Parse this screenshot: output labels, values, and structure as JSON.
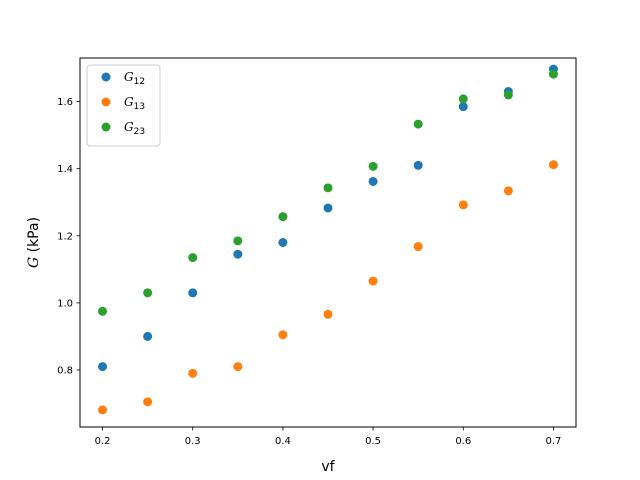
{
  "chart_data": {
    "type": "scatter",
    "xlabel": "vf",
    "ylabel_italic": "G",
    "ylabel_rest": " (kPa)",
    "xlim": [
      0.175,
      0.725
    ],
    "ylim": [
      0.63,
      1.73
    ],
    "xticks": [
      0.2,
      0.3,
      0.4,
      0.5,
      0.6,
      0.7
    ],
    "xtick_labels": [
      "0.2",
      "0.3",
      "0.4",
      "0.5",
      "0.6",
      "0.7"
    ],
    "yticks": [
      0.8,
      1.0,
      1.2,
      1.4,
      1.6
    ],
    "ytick_labels": [
      "0.8",
      "1.0",
      "1.2",
      "1.4",
      "1.6"
    ],
    "grid": false,
    "legend_position": "top-left",
    "x": [
      0.2,
      0.25,
      0.3,
      0.35,
      0.4,
      0.45,
      0.5,
      0.55,
      0.6,
      0.65,
      0.7
    ],
    "series": [
      {
        "name": "G12",
        "name_base": "G",
        "name_sub": "12",
        "color": "#1f77b4",
        "values": [
          0.81,
          0.9,
          1.03,
          1.145,
          1.18,
          1.283,
          1.362,
          1.41,
          1.585,
          1.63,
          1.697
        ]
      },
      {
        "name": "G13",
        "name_base": "G",
        "name_sub": "13",
        "color": "#ff7f0e",
        "values": [
          0.681,
          0.705,
          0.79,
          0.81,
          0.905,
          0.966,
          1.065,
          1.168,
          1.292,
          1.334,
          1.412
        ]
      },
      {
        "name": "G23",
        "name_base": "G",
        "name_sub": "23",
        "color": "#2ca02c",
        "values": [
          0.975,
          1.03,
          1.135,
          1.185,
          1.257,
          1.343,
          1.407,
          1.533,
          1.608,
          1.62,
          1.682
        ]
      }
    ]
  }
}
